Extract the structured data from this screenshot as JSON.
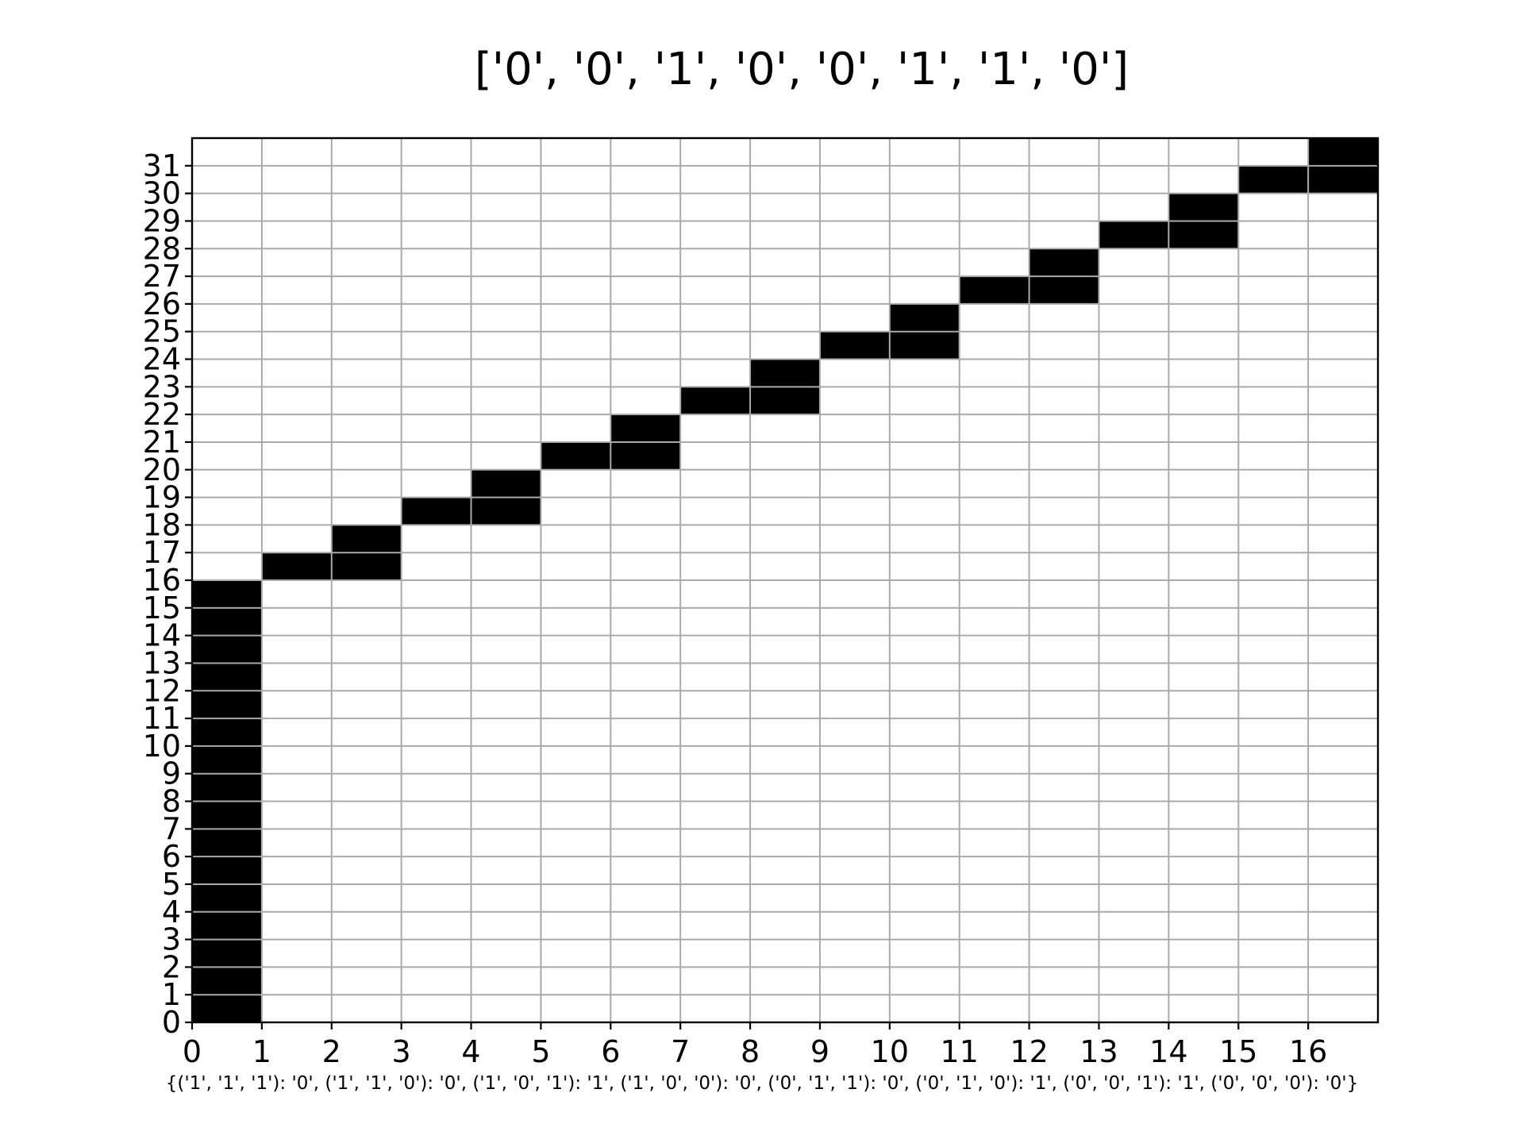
{
  "chart_data": {
    "type": "heatmap",
    "title": "['0', '0', '1', '0', '0', '1', '1', '0']",
    "xlabel": "",
    "ylabel": "",
    "caption": "{('1', '1', '1'): '0', ('1', '1', '0'): '0', ('1', '0', '1'): '1', ('1', '0', '0'): '0', ('0', '1', '1'): '0', ('0', '1', '0'): '1', ('0', '0', '1'): '1', ('0', '0', '0'): '0'}",
    "x_ticks": [
      0,
      1,
      2,
      3,
      4,
      5,
      6,
      7,
      8,
      9,
      10,
      11,
      12,
      13,
      14,
      15,
      16
    ],
    "y_ticks": [
      0,
      1,
      2,
      3,
      4,
      5,
      6,
      7,
      8,
      9,
      10,
      11,
      12,
      13,
      14,
      15,
      16,
      17,
      18,
      19,
      20,
      21,
      22,
      23,
      24,
      25,
      26,
      27,
      28,
      29,
      30,
      31
    ],
    "xlim": [
      0,
      17
    ],
    "ylim": [
      0,
      32
    ],
    "grid": true,
    "colors": {
      "filled": "#000000",
      "empty": "#ffffff",
      "grid": "#aaaaaa",
      "axes": "#000000"
    },
    "filled_cells": [
      [
        0,
        0
      ],
      [
        0,
        1
      ],
      [
        0,
        2
      ],
      [
        0,
        3
      ],
      [
        0,
        4
      ],
      [
        0,
        5
      ],
      [
        0,
        6
      ],
      [
        0,
        7
      ],
      [
        0,
        8
      ],
      [
        0,
        9
      ],
      [
        0,
        10
      ],
      [
        0,
        11
      ],
      [
        0,
        12
      ],
      [
        0,
        13
      ],
      [
        0,
        14
      ],
      [
        0,
        15
      ],
      [
        1,
        16
      ],
      [
        2,
        16
      ],
      [
        2,
        17
      ],
      [
        3,
        18
      ],
      [
        4,
        18
      ],
      [
        4,
        19
      ],
      [
        5,
        20
      ],
      [
        6,
        20
      ],
      [
        6,
        21
      ],
      [
        7,
        22
      ],
      [
        8,
        22
      ],
      [
        8,
        23
      ],
      [
        9,
        24
      ],
      [
        10,
        24
      ],
      [
        10,
        25
      ],
      [
        11,
        26
      ],
      [
        12,
        26
      ],
      [
        12,
        27
      ],
      [
        13,
        28
      ],
      [
        14,
        28
      ],
      [
        14,
        29
      ],
      [
        15,
        30
      ],
      [
        16,
        30
      ],
      [
        16,
        31
      ]
    ]
  }
}
